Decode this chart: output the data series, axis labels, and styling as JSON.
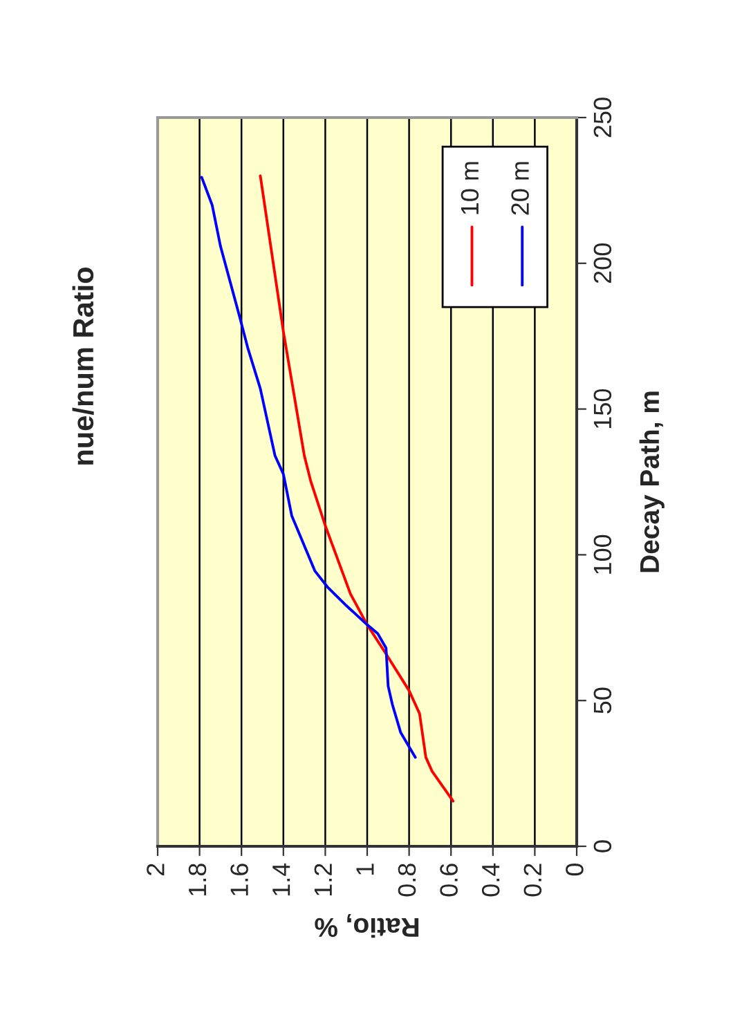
{
  "chart_data": {
    "type": "line",
    "title": "nue/num Ratio",
    "xlabel": "Ratio, %",
    "ylabel": "Decay Path, m",
    "xlim": [
      2,
      0
    ],
    "xticks": [
      2,
      1.8,
      1.6,
      1.4,
      1.2,
      1,
      0.8,
      0.6,
      0.4,
      0.2,
      0
    ],
    "ylim": [
      0,
      250
    ],
    "yticks": [
      0,
      50,
      100,
      150,
      200,
      250
    ],
    "grid": "x",
    "legend": "top right",
    "series": [
      {
        "name": "10 m",
        "color": "#ff0000",
        "x": [
          0.59,
          0.69,
          0.72,
          0.75,
          0.8,
          0.91,
          1.0,
          1.08,
          1.2,
          1.27,
          1.3,
          1.4,
          1.51
        ],
        "values": [
          15.5,
          25.7,
          30.5,
          45.5,
          53.4,
          66,
          76,
          86.6,
          110,
          125.4,
          134,
          176.6,
          230
        ]
      },
      {
        "name": "20 m",
        "color": "#0000ff",
        "x": [
          0.77,
          0.84,
          0.88,
          0.9,
          0.91,
          0.95,
          1.0,
          1.1,
          1.19,
          1.25,
          1.36,
          1.4,
          1.44,
          1.51,
          1.57,
          1.61,
          1.7,
          1.74,
          1.79
        ],
        "values": [
          30.5,
          39,
          48.7,
          55,
          68,
          73,
          76,
          82.6,
          89,
          94.5,
          113.4,
          127.7,
          134,
          157,
          171,
          182,
          205.8,
          220,
          229.5
        ]
      }
    ]
  }
}
